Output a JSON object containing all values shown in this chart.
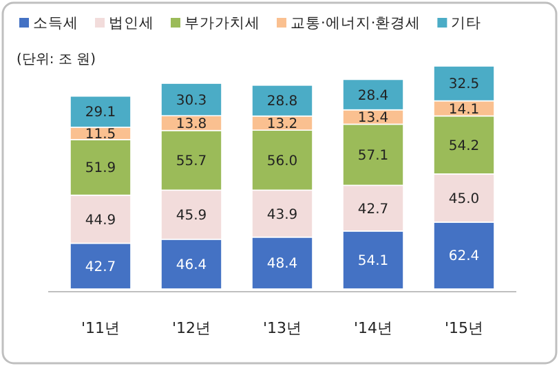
{
  "chart_data": {
    "type": "bar",
    "stacked": true,
    "legend": "top",
    "annotations": [
      "(단위: 조 원)"
    ],
    "categories": [
      "'11년",
      "'12년",
      "'13년",
      "'14년",
      "'15년"
    ],
    "series": [
      {
        "name": "소득세",
        "color": "#4472c4",
        "values": [
          42.7,
          46.4,
          48.4,
          54.1,
          62.4
        ],
        "value_labels": [
          "42.7",
          "46.4",
          "48.4",
          "54.1",
          "62.4"
        ]
      },
      {
        "name": "법인세",
        "color": "#f2dcdb",
        "values": [
          44.9,
          45.9,
          43.9,
          42.7,
          45.0
        ],
        "value_labels": [
          "44.9",
          "45.9",
          "43.9",
          "42.7",
          "45.0"
        ]
      },
      {
        "name": "부가가치세",
        "color": "#9bbb59",
        "values": [
          51.9,
          55.7,
          56.0,
          57.1,
          54.2
        ],
        "value_labels": [
          "51.9",
          "55.7",
          "56.0",
          "57.1",
          "54.2"
        ]
      },
      {
        "name": "교통·에너지·환경세",
        "color": "#fac090",
        "values": [
          11.5,
          13.8,
          13.2,
          13.4,
          14.1
        ],
        "value_labels": [
          "11.5",
          "13.8",
          "13.2",
          "13.4",
          "14.1"
        ]
      },
      {
        "name": "기타",
        "color": "#4bacc6",
        "values": [
          29.1,
          30.3,
          28.8,
          28.4,
          32.5
        ],
        "value_labels": [
          "29.1",
          "30.3",
          "28.8",
          "28.4",
          "32.5"
        ]
      }
    ]
  }
}
